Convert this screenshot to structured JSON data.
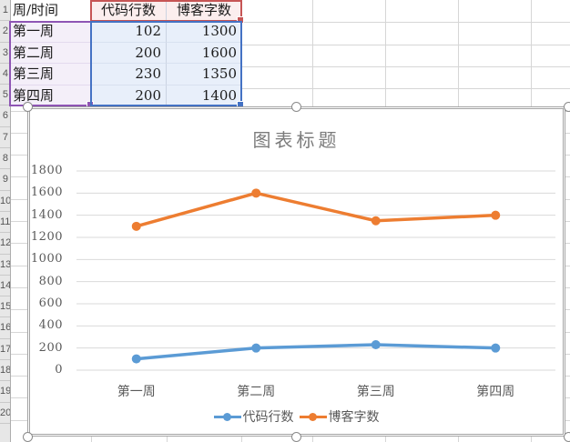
{
  "sheet": {
    "row_numbers": [
      "1",
      "2",
      "3",
      "4",
      "5",
      "6",
      "7",
      "8",
      "9",
      "10",
      "11",
      "12",
      "13",
      "14",
      "15",
      "16",
      "17",
      "18",
      "19",
      "20"
    ],
    "table": {
      "headers": [
        "周/时间",
        "代码行数",
        "博客字数"
      ],
      "rows": [
        {
          "week": "第一周",
          "code": "102",
          "words": "1300"
        },
        {
          "week": "第二周",
          "code": "200",
          "words": "1600"
        },
        {
          "week": "第三周",
          "code": "230",
          "words": "1350"
        },
        {
          "week": "第四周",
          "code": "200",
          "words": "1400"
        }
      ]
    }
  },
  "chart_data": {
    "type": "line",
    "title": "图表标题",
    "categories": [
      "第一周",
      "第二周",
      "第三周",
      "第四周"
    ],
    "series": [
      {
        "name": "代码行数",
        "color": "#5B9BD5",
        "values": [
          102,
          200,
          230,
          200
        ]
      },
      {
        "name": "博客字数",
        "color": "#ED7D31",
        "values": [
          1300,
          1600,
          1350,
          1400
        ]
      }
    ],
    "ylim": [
      0,
      1800
    ],
    "ytick_step": 200,
    "grid": true,
    "legend_position": "bottom"
  },
  "colors": {
    "series_blue": "#5B9BD5",
    "series_orange": "#ED7D31",
    "selection_purple": "#8E55B4",
    "selection_red": "#C65555",
    "selection_blue": "#4472C4",
    "fill_purple": "#F4EFF9",
    "fill_red": "#FBEEEE",
    "fill_blue": "#E8EFFA",
    "chart_gridline": "#D9D9D9",
    "axis_text": "#595959"
  }
}
